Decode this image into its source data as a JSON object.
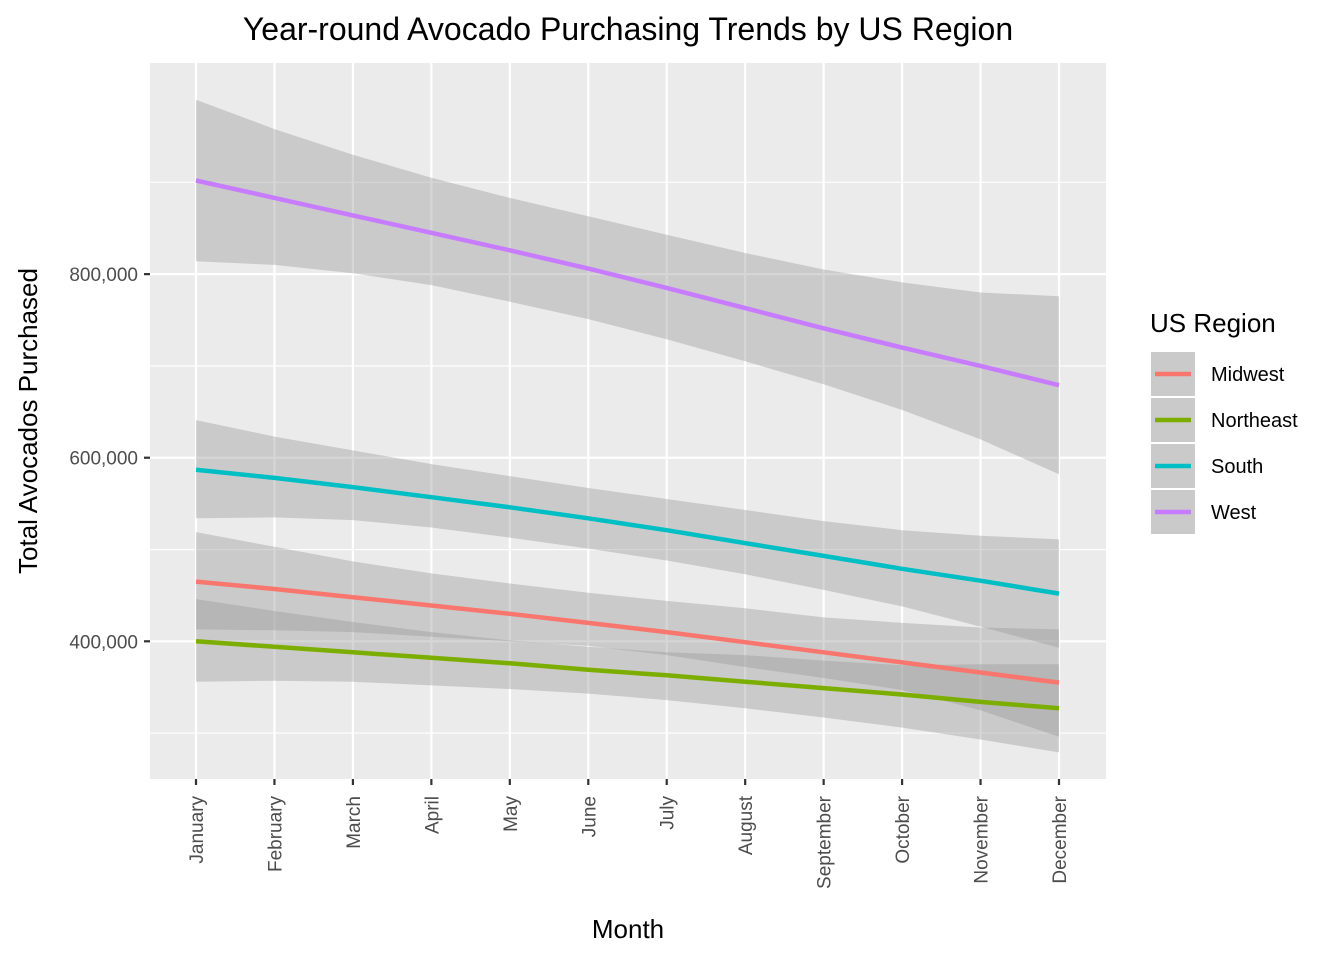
{
  "chart_data": {
    "type": "line",
    "title": "Year-round Avocado Purchasing Trends by US Region",
    "xlabel": "Month",
    "ylabel": "Total Avocados Purchased",
    "categories": [
      "January",
      "February",
      "March",
      "April",
      "May",
      "June",
      "July",
      "August",
      "September",
      "October",
      "November",
      "December"
    ],
    "ylim": [
      250000,
      1030000
    ],
    "yticks": [
      400000,
      600000,
      800000
    ],
    "ytick_labels": [
      "400,000",
      "600,000",
      "800,000"
    ],
    "y_minor_ticks": [
      300000,
      500000,
      700000,
      900000
    ],
    "grid": true,
    "legend": {
      "title": "US Region",
      "position": "right"
    },
    "series": [
      {
        "name": "Midwest",
        "color": "#F8766D",
        "values": [
          465000,
          457000,
          448000,
          439000,
          430000,
          420000,
          410000,
          399000,
          388000,
          377000,
          366000,
          355000
        ],
        "lower": [
          413000,
          412000,
          410000,
          405000,
          400000,
          395000,
          385000,
          372000,
          360000,
          347000,
          325000,
          296000
        ],
        "upper": [
          519000,
          503000,
          487000,
          474000,
          463000,
          453000,
          444000,
          436000,
          426000,
          420000,
          415000,
          413000
        ]
      },
      {
        "name": "Northeast",
        "color": "#7CAE00",
        "values": [
          400000,
          394000,
          388000,
          382000,
          376000,
          369000,
          363000,
          356000,
          349000,
          342000,
          334000,
          327000
        ],
        "lower": [
          356000,
          357000,
          356000,
          352000,
          348000,
          343000,
          336000,
          327000,
          317000,
          306000,
          293000,
          279000
        ],
        "upper": [
          446000,
          433000,
          421000,
          410000,
          401000,
          394000,
          388000,
          385000,
          379000,
          374000,
          375000,
          375000
        ]
      },
      {
        "name": "South",
        "color": "#00BFC4",
        "values": [
          587000,
          578000,
          568000,
          557000,
          546000,
          534000,
          521000,
          507000,
          493000,
          479000,
          466000,
          452000
        ],
        "lower": [
          534000,
          535000,
          532000,
          524000,
          513000,
          501000,
          488000,
          473000,
          456000,
          438000,
          416000,
          393000
        ],
        "upper": [
          641000,
          623000,
          608000,
          593000,
          580000,
          567000,
          555000,
          543000,
          531000,
          521000,
          515000,
          511000
        ]
      },
      {
        "name": "West",
        "color": "#C77CFF",
        "values": [
          902000,
          883000,
          864000,
          845000,
          826000,
          806000,
          785000,
          763000,
          741000,
          720000,
          700000,
          679000
        ],
        "lower": [
          814000,
          810000,
          801000,
          788000,
          770000,
          751000,
          729000,
          705000,
          680000,
          652000,
          620000,
          582000
        ],
        "upper": [
          990000,
          958000,
          930000,
          905000,
          883000,
          863000,
          843000,
          823000,
          805000,
          791000,
          780000,
          776000
        ]
      }
    ]
  }
}
